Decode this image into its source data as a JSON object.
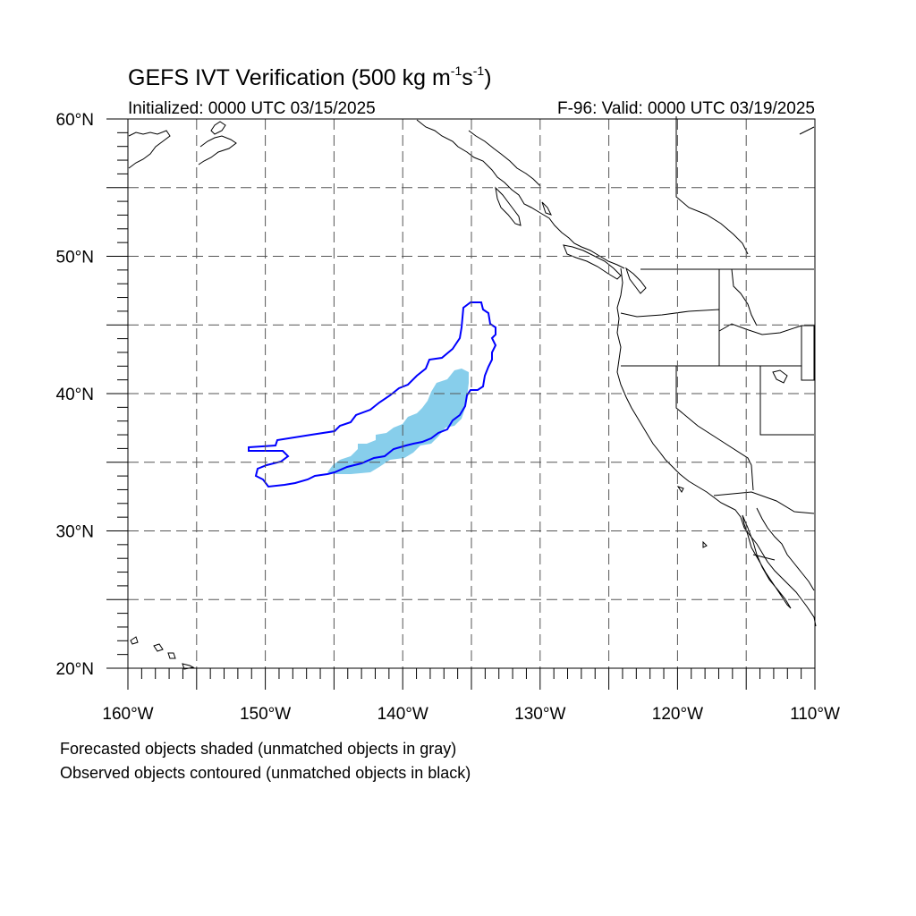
{
  "title": {
    "main": "GEFS IVT Verification (500 kg m",
    "sup1": "-1",
    "mid": "s",
    "sup2": "-1",
    "end": ")"
  },
  "subtitle_left": "Initialized: 0000 UTC 03/15/2025",
  "subtitle_right": "F-96: Valid: 0000 UTC 03/19/2025",
  "notes": [
    "Forecasted objects shaded (unmatched objects in gray)",
    "Observed objects contoured (unmatched objects in black)"
  ],
  "map": {
    "lon_range": [
      -160,
      -110
    ],
    "lat_range": [
      20,
      60
    ],
    "lat_labels": [
      {
        "lat": 60,
        "text": "60°N"
      },
      {
        "lat": 50,
        "text": "50°N"
      },
      {
        "lat": 40,
        "text": "40°N"
      },
      {
        "lat": 30,
        "text": "30°N"
      },
      {
        "lat": 20,
        "text": "20°N"
      }
    ],
    "lon_labels": [
      {
        "lon": -160,
        "text": "160°W"
      },
      {
        "lon": -150,
        "text": "150°W"
      },
      {
        "lon": -140,
        "text": "140°W"
      },
      {
        "lon": -130,
        "text": "130°W"
      },
      {
        "lon": -120,
        "text": "120°W"
      },
      {
        "lon": -110,
        "text": "110°W"
      }
    ],
    "forecast_color": "#87ceeb",
    "observed_color": "#0000ff",
    "gridline_color": "#555555",
    "coast_color": "#000000"
  }
}
